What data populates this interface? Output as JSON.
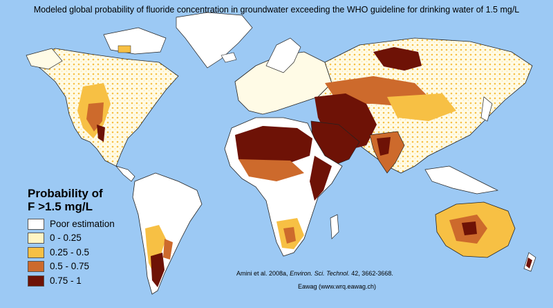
{
  "title": "Modeled global probability of fluoride concentration in groundwater exceeding the WHO guideline for drinking water of 1.5 mg/L",
  "legend": {
    "title_line1": "Probability of",
    "title_line2": "F >1.5 mg/L",
    "items": [
      {
        "label": "Poor estimation",
        "color": "#ffffff"
      },
      {
        "label": "0 - 0.25",
        "color": "#fff5c4"
      },
      {
        "label": "0.25 - 0.5",
        "color": "#f7c044"
      },
      {
        "label": "0.5 - 0.75",
        "color": "#cd6a2c"
      },
      {
        "label": "0.75 - 1",
        "color": "#6e1206"
      }
    ]
  },
  "citation": {
    "authors": "Amini et al. 2008a,",
    "journal": "Environ. Sci. Technol.",
    "details": "42, 3662-3668."
  },
  "credit": "Eawag (www.wrq.eawag.ch)",
  "colors": {
    "ocean": "#9cc9f4",
    "land_outline": "#222222"
  }
}
